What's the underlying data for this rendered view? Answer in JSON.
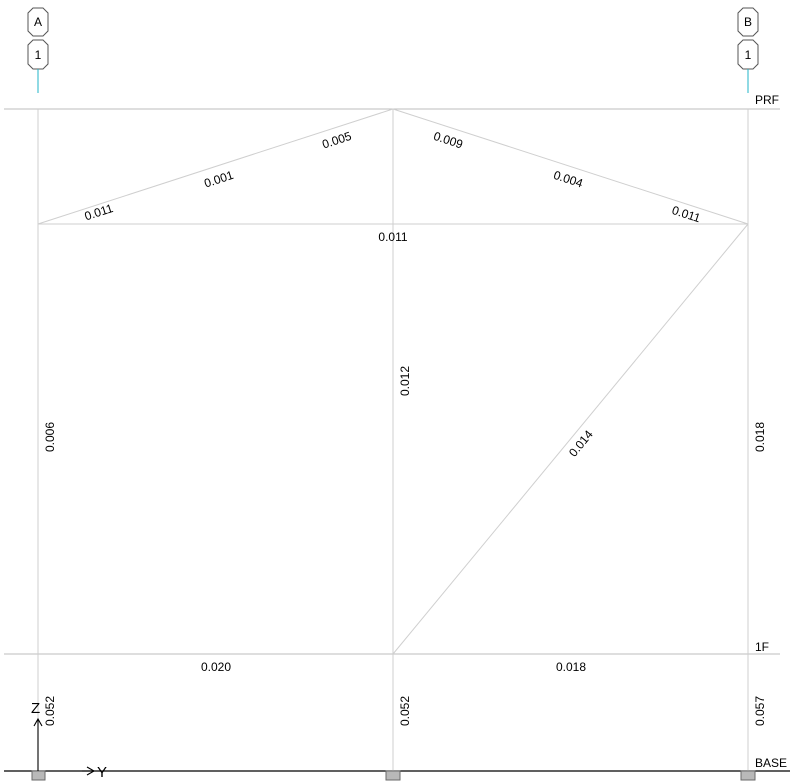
{
  "grid_bubbles": [
    {
      "top": "A",
      "bottom": "1"
    },
    {
      "top": "B",
      "bottom": "1"
    }
  ],
  "levels": [
    "PRF",
    "1F",
    "BASE"
  ],
  "member_ratios": {
    "roof_left_1": "0.011",
    "roof_left_2": "0.001",
    "roof_left_3": "0.005",
    "roof_right_1": "0.009",
    "roof_right_2": "0.004",
    "roof_right_3": "0.011",
    "truss_bottom_chord": "0.011",
    "col_left_upper": "0.006",
    "col_mid_upper": "0.012",
    "brace": "0.014",
    "col_right_upper": "0.018",
    "beam_1f_left": "0.020",
    "beam_1f_right": "0.018",
    "col_left_lower": "0.052",
    "col_mid_lower": "0.052",
    "col_right_lower": "0.057"
  },
  "axes": {
    "vertical": "Z",
    "horizontal": "Y"
  },
  "colors": {
    "member": "#cfcfcf",
    "grid_tick": "#22b5c9",
    "support": "#b9b9b9"
  }
}
